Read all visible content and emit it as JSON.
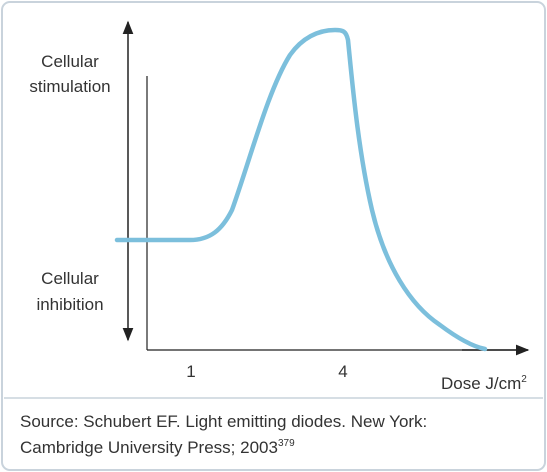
{
  "labels": {
    "stimulation": [
      "Cellular",
      "stimulation"
    ],
    "inhibition": [
      "Cellular",
      "inhibition"
    ]
  },
  "x_tick_labels": [
    "1",
    "4"
  ],
  "x_axis_label": {
    "text": "Dose J/cm",
    "sup": "2"
  },
  "source": {
    "line1": "Source: Schubert EF. Light emitting diodes. New York:",
    "line2": "Cambridge University Press; 2003",
    "sup": "379"
  }
}
